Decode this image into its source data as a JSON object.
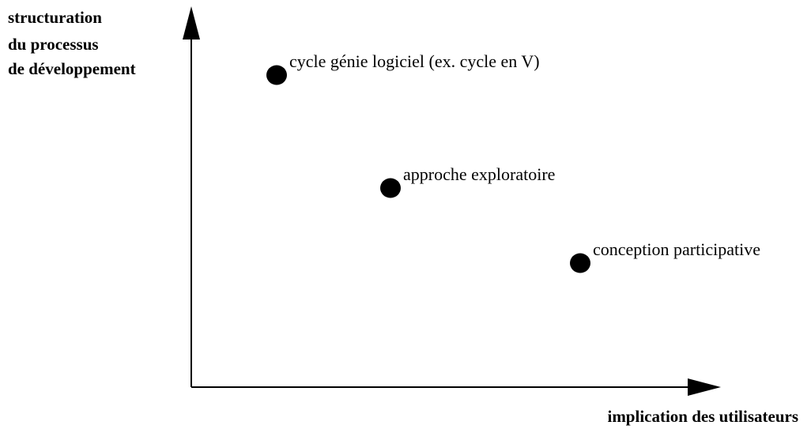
{
  "axes": {
    "y_label": [
      "structuration",
      "du processus",
      "de développement"
    ],
    "x_label": "implication des utilisateurs"
  },
  "nodes": [
    {
      "label": "cycle génie logiciel (ex. cycle en V)"
    },
    {
      "label": "approche exploratoire"
    },
    {
      "label": "conception participative"
    }
  ]
}
